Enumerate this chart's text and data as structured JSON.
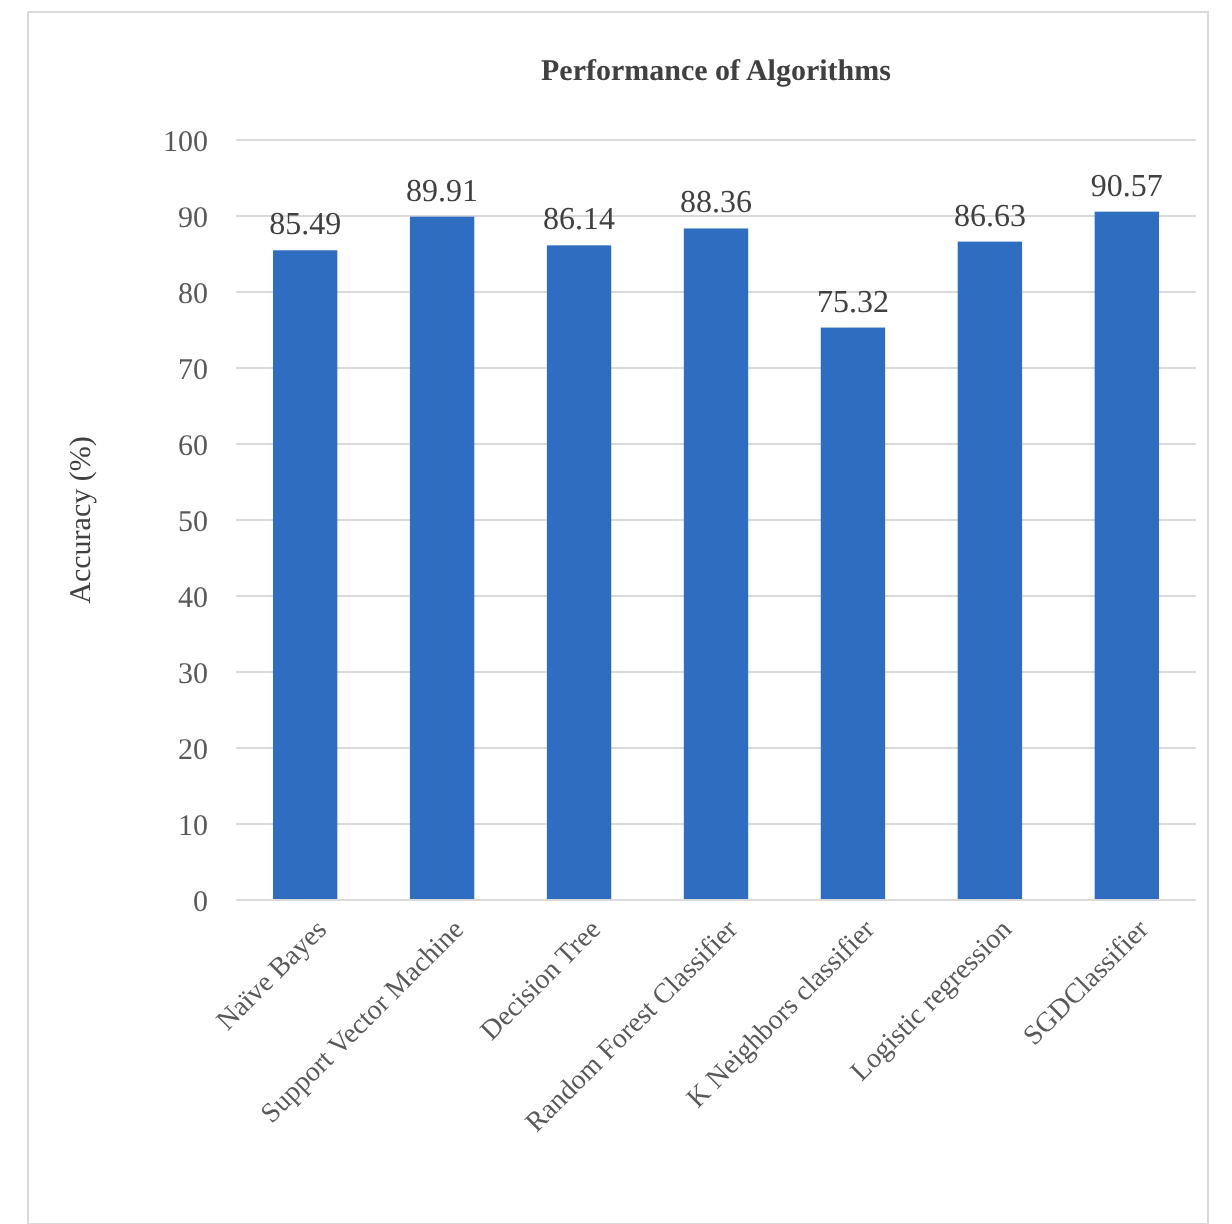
{
  "chart_data": {
    "type": "bar",
    "title": "Performance of Algorithms",
    "ylabel": "Accuracy (%)",
    "categories": [
      "Naïve Bayes",
      "Support Vector Machine",
      "Decision Tree",
      "Random Forest Classifier",
      "K Neighbors classifier",
      "Logistic regression",
      "SGDClassifier"
    ],
    "values": [
      85.49,
      89.91,
      86.14,
      88.36,
      75.32,
      86.63,
      90.57
    ],
    "color": "#2e6dbf",
    "ylim": [
      0,
      100
    ],
    "yticks": [
      0,
      10,
      20,
      30,
      40,
      50,
      60,
      70,
      80,
      90,
      100
    ],
    "grid": "y",
    "data_labels": true
  }
}
